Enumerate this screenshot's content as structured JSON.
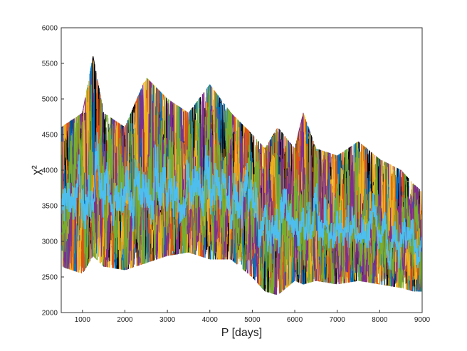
{
  "chart_data": {
    "type": "line",
    "title": "",
    "xlabel": "P [days]",
    "ylabel": "χ²",
    "xlim": [
      500,
      9000
    ],
    "ylim": [
      2000,
      6000
    ],
    "xticks": [
      1000,
      2000,
      3000,
      4000,
      5000,
      6000,
      7000,
      8000,
      9000
    ],
    "yticks": [
      2000,
      2500,
      3000,
      3500,
      4000,
      4500,
      5000,
      5500,
      6000
    ],
    "grid": false,
    "legend": "none",
    "series_colors": [
      "#000000",
      "#0072BD",
      "#D95319",
      "#EDB120",
      "#7E2F8E",
      "#77AC30",
      "#4DBEEE"
    ],
    "envelope": {
      "x": [
        500,
        1000,
        1250,
        1500,
        2000,
        2500,
        3000,
        3500,
        4000,
        4500,
        5000,
        5300,
        5600,
        6000,
        6200,
        6500,
        7000,
        7500,
        8000,
        8500,
        8800,
        9000
      ],
      "upper": [
        4600,
        4800,
        5600,
        4800,
        4600,
        5300,
        5000,
        4800,
        5200,
        4800,
        4500,
        4300,
        4600,
        4300,
        4800,
        4300,
        4200,
        4400,
        4150,
        4000,
        3800,
        3700
      ],
      "lower": [
        2650,
        2550,
        2800,
        2650,
        2600,
        2700,
        2800,
        2850,
        2750,
        2750,
        2500,
        2300,
        2250,
        2450,
        2400,
        2450,
        2400,
        2450,
        2400,
        2350,
        2300,
        2300
      ],
      "center": [
        3600,
        3650,
        3750,
        3650,
        3600,
        3700,
        3700,
        3650,
        3750,
        3650,
        3400,
        3250,
        3200,
        3300,
        3350,
        3200,
        3150,
        3150,
        3100,
        3050,
        3050,
        3000
      ]
    }
  }
}
